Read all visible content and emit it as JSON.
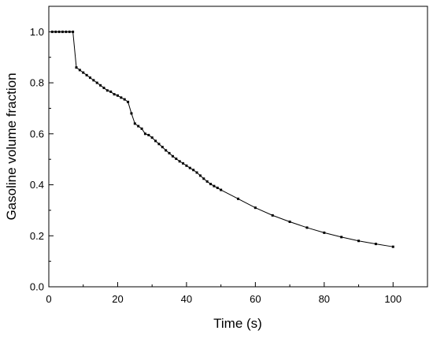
{
  "chart_data": {
    "type": "line",
    "title": "",
    "xlabel": "Time (s)",
    "ylabel": "Gasoline volume fraction",
    "xlim": [
      0,
      110
    ],
    "ylim": [
      0,
      1.1
    ],
    "xticks": [
      0,
      20,
      40,
      60,
      80,
      100
    ],
    "xtick_labels": [
      "0",
      "20",
      "40",
      "60",
      "80",
      "100"
    ],
    "yticks": [
      0.0,
      0.2,
      0.4,
      0.6,
      0.8,
      1.0
    ],
    "ytick_labels": [
      "0.0",
      "0.2",
      "0.4",
      "0.6",
      "0.8",
      "1.0"
    ],
    "grid": false,
    "legend": "none",
    "line_color": "#000000",
    "marker": "square",
    "series": [
      {
        "x": [
          1,
          2,
          3,
          4,
          5,
          6,
          7,
          8,
          9,
          10,
          11,
          12,
          13,
          14,
          15,
          16,
          17,
          18,
          19,
          20,
          21,
          22,
          23,
          24,
          25,
          26,
          27,
          28,
          29,
          30,
          31,
          32,
          33,
          34,
          35,
          36,
          37,
          38,
          39,
          40,
          41,
          42,
          43,
          44,
          45,
          46,
          47,
          48,
          49,
          50,
          55,
          60,
          65,
          70,
          75,
          80,
          85,
          90,
          95,
          100
        ],
        "y": [
          1.0,
          1.0,
          1.0,
          1.0,
          1.0,
          1.0,
          1.0,
          0.86,
          0.85,
          0.84,
          0.83,
          0.82,
          0.81,
          0.8,
          0.79,
          0.78,
          0.77,
          0.765,
          0.755,
          0.75,
          0.742,
          0.735,
          0.725,
          0.68,
          0.64,
          0.63,
          0.62,
          0.6,
          0.595,
          0.585,
          0.572,
          0.56,
          0.548,
          0.535,
          0.524,
          0.512,
          0.502,
          0.492,
          0.484,
          0.475,
          0.466,
          0.458,
          0.448,
          0.436,
          0.424,
          0.413,
          0.403,
          0.395,
          0.388,
          0.38,
          0.345,
          0.31,
          0.28,
          0.255,
          0.232,
          0.212,
          0.195,
          0.18,
          0.168,
          0.157
        ]
      }
    ]
  }
}
